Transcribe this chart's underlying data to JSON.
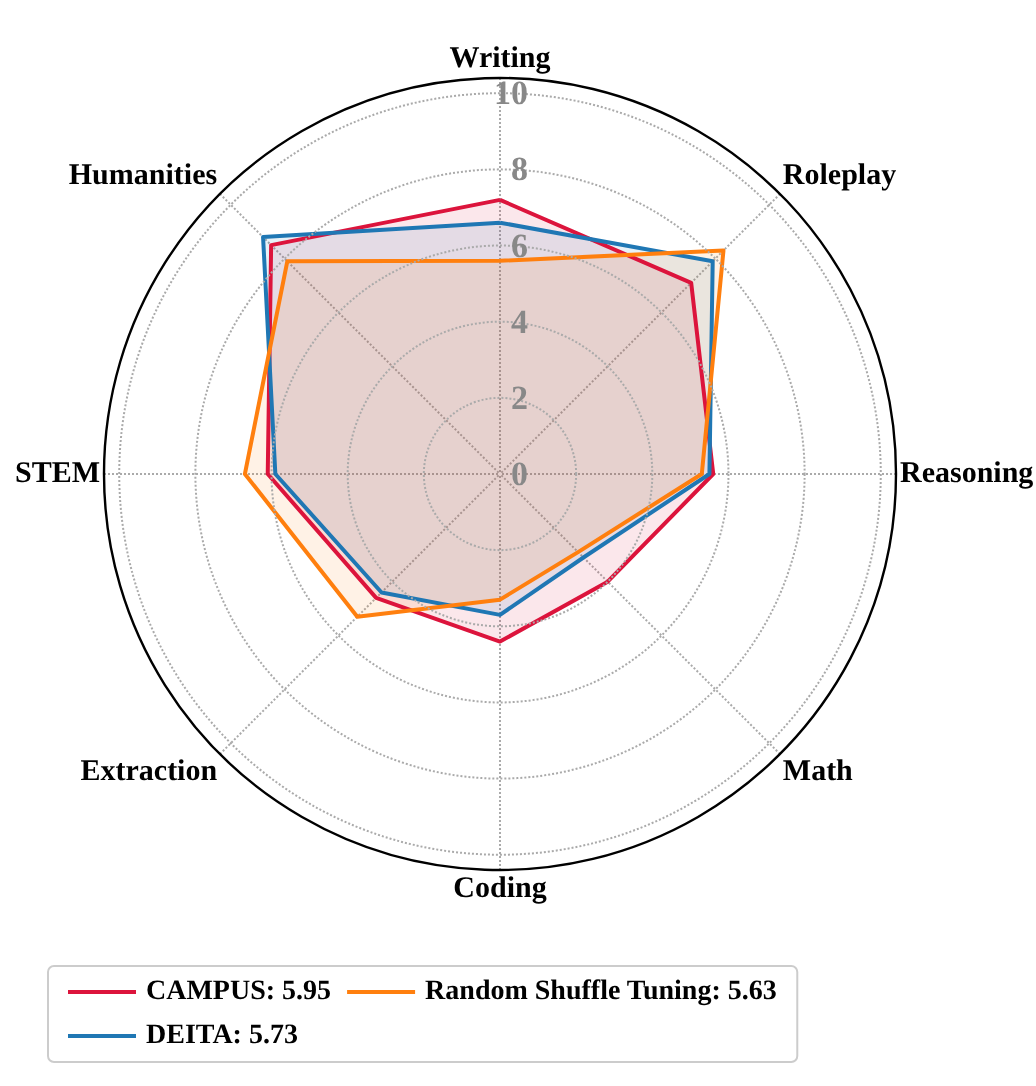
{
  "chart_data": {
    "type": "radar",
    "categories": [
      "Writing",
      "Roleplay",
      "Reasoning",
      "Math",
      "Coding",
      "Extraction",
      "STEM",
      "Humanities"
    ],
    "series": [
      {
        "name": "CAMPUS: 5.95",
        "color": "#dc143c",
        "values": [
          7.2,
          7.1,
          5.6,
          4.0,
          4.4,
          4.6,
          6.1,
          8.5
        ]
      },
      {
        "name": "DEITA: 5.73",
        "color": "#1f77b4",
        "values": [
          6.6,
          7.9,
          5.5,
          3.1,
          3.7,
          4.4,
          5.9,
          8.8
        ]
      },
      {
        "name": "Random Shuffle Tuning: 5.63",
        "color": "#ff7f0e",
        "values": [
          5.6,
          8.3,
          5.3,
          2.9,
          3.3,
          5.3,
          6.7,
          7.9
        ]
      }
    ],
    "ylim": [
      0,
      10.4
    ],
    "yticks": [
      0,
      2,
      4,
      6,
      8,
      10
    ],
    "grid": true,
    "legend": "bottom"
  }
}
